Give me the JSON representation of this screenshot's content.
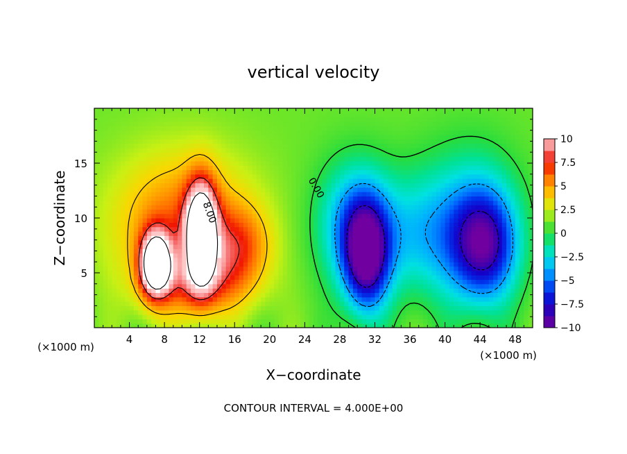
{
  "chart_data": {
    "type": "heatmap",
    "title": "vertical velocity",
    "xlabel": "X−coordinate",
    "ylabel": "Z−coordinate",
    "x_unit_note": "(×1000 m)",
    "x_unit_note_right": "(×1000 m)",
    "footer": "CONTOUR INTERVAL = 4.000E+00",
    "xlim": [
      0,
      50
    ],
    "ylim": [
      0,
      20
    ],
    "x_ticks": [
      4,
      8,
      12,
      16,
      20,
      24,
      28,
      32,
      36,
      40,
      44,
      48
    ],
    "x_tick_labels": [
      "4",
      "8",
      "12",
      "16",
      "20",
      "24",
      "28",
      "32",
      "36",
      "40",
      "44",
      "48"
    ],
    "y_ticks": [
      5,
      10,
      15
    ],
    "y_tick_labels": [
      "5",
      "10",
      "15"
    ],
    "contour_labels": [
      {
        "text": "8.00",
        "x": 12.8,
        "y": 10.4
      },
      {
        "text": "0.00",
        "x": 25.0,
        "y": 12.6
      }
    ],
    "colorbar": {
      "min": -10,
      "max": 10,
      "tick_values": [
        10,
        7.5,
        5,
        2.5,
        0,
        -2.5,
        -5,
        -7.5,
        -10
      ],
      "tick_labels": [
        "10",
        "7.5",
        "5",
        "2.5",
        "0",
        "−2.5",
        "−5",
        "−7.5",
        "−10"
      ]
    },
    "features": [
      {
        "name": "updraft-core-1",
        "sign": "up",
        "x": 7.0,
        "y": 5.8,
        "sx": 1.2,
        "sz": 2.0,
        "peak": 14
      },
      {
        "name": "updraft-core-2",
        "sign": "up",
        "x": 12.2,
        "y": 8.5,
        "sx": 1.2,
        "sz": 3.2,
        "peak": 14
      },
      {
        "name": "updraft-broad",
        "sign": "up",
        "x": 10.0,
        "y": 9.5,
        "sx": 5.5,
        "sz": 4.5,
        "peak": 5
      },
      {
        "name": "updraft-base",
        "sign": "up",
        "x": 12.0,
        "y": 4.0,
        "sx": 4.0,
        "sz": 2.0,
        "peak": 4
      },
      {
        "name": "updraft-east",
        "sign": "up",
        "x": 16.5,
        "y": 7.5,
        "sx": 2.5,
        "sz": 2.5,
        "peak": 4
      },
      {
        "name": "downdraft-core",
        "sign": "down",
        "x": 31.0,
        "y": 6.5,
        "sx": 1.8,
        "sz": 3.5,
        "peak": 10
      },
      {
        "name": "downdraft-west",
        "sign": "down",
        "x": 29.5,
        "y": 9.5,
        "sx": 3.0,
        "sz": 4.0,
        "peak": 5
      },
      {
        "name": "downdraft-mid",
        "sign": "down",
        "x": 37.0,
        "y": 8.5,
        "sx": 4.0,
        "sz": 4.0,
        "peak": 3.5
      },
      {
        "name": "downdraft-east",
        "sign": "down",
        "x": 44.5,
        "y": 7.5,
        "sx": 2.5,
        "sz": 3.5,
        "peak": 8
      },
      {
        "name": "downdraft-east-broad",
        "sign": "down",
        "x": 43.0,
        "y": 9.5,
        "sx": 4.0,
        "sz": 5.0,
        "peak": 3.5
      }
    ]
  }
}
